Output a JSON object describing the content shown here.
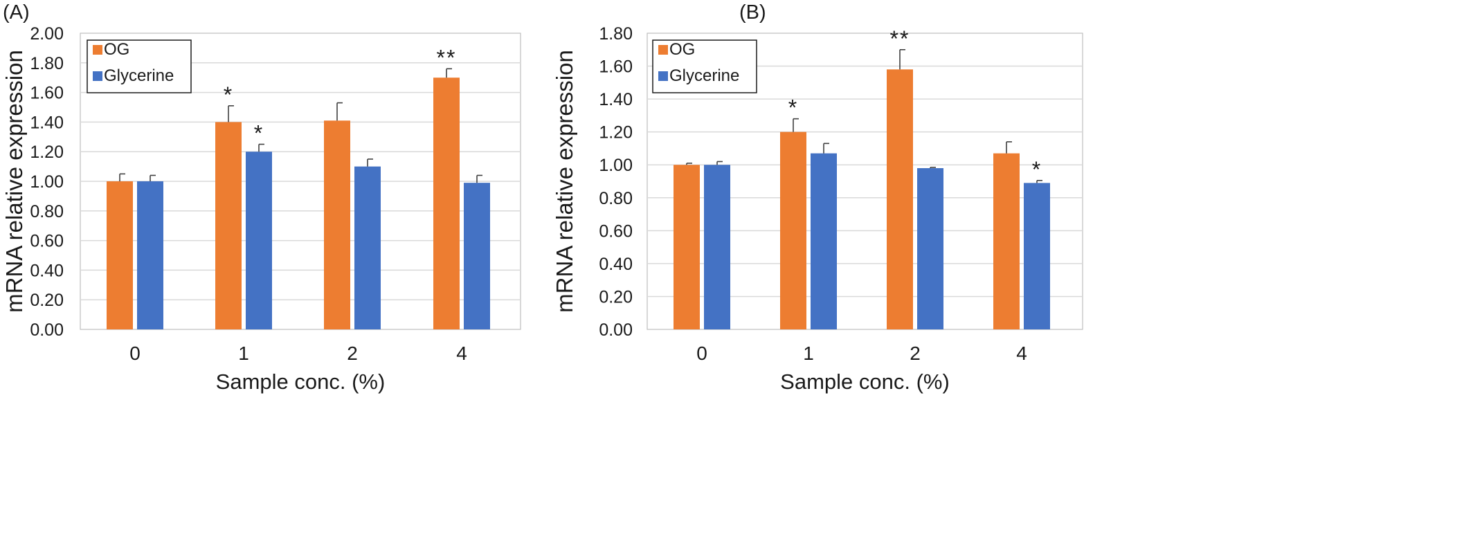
{
  "chart_data": [
    {
      "panel_label": "(A)",
      "type": "bar",
      "categories": [
        "0",
        "1",
        "2",
        "4"
      ],
      "xlabel": "Sample conc. (%)",
      "ylabel": "mRNA relative expression",
      "ylim": [
        0,
        2.0
      ],
      "yticks": [
        "0.00",
        "0.20",
        "0.40",
        "0.60",
        "0.80",
        "1.00",
        "1.20",
        "1.40",
        "1.60",
        "1.80",
        "2.00"
      ],
      "grid": true,
      "legend_position": "top-left",
      "series": [
        {
          "name": "OG",
          "color": "#ED7D31",
          "values": [
            1.0,
            1.4,
            1.41,
            1.7
          ],
          "errors": [
            0.05,
            0.11,
            0.12,
            0.06
          ],
          "significance": [
            "",
            "*",
            "",
            "**"
          ]
        },
        {
          "name": "Glycerine",
          "color": "#4472C4",
          "values": [
            1.0,
            1.2,
            1.1,
            0.99
          ],
          "errors": [
            0.04,
            0.05,
            0.05,
            0.05
          ],
          "significance": [
            "",
            "*",
            "",
            ""
          ]
        }
      ]
    },
    {
      "panel_label": "(B)",
      "type": "bar",
      "categories": [
        "0",
        "1",
        "2",
        "4"
      ],
      "xlabel": "Sample conc. (%)",
      "ylabel": "mRNA relative expression",
      "ylim": [
        0,
        1.8
      ],
      "yticks": [
        "0.00",
        "0.20",
        "0.40",
        "0.60",
        "0.80",
        "1.00",
        "1.20",
        "1.40",
        "1.60",
        "1.80"
      ],
      "grid": true,
      "legend_position": "top-left",
      "series": [
        {
          "name": "OG",
          "color": "#ED7D31",
          "values": [
            1.0,
            1.2,
            1.58,
            1.07
          ],
          "errors": [
            0.01,
            0.08,
            0.12,
            0.07
          ],
          "significance": [
            "",
            "*",
            "**",
            ""
          ]
        },
        {
          "name": "Glycerine",
          "color": "#4472C4",
          "values": [
            1.0,
            1.07,
            0.98,
            0.89
          ],
          "errors": [
            0.02,
            0.06,
            0.005,
            0.015
          ],
          "significance": [
            "",
            "",
            "",
            "*"
          ]
        }
      ]
    }
  ]
}
